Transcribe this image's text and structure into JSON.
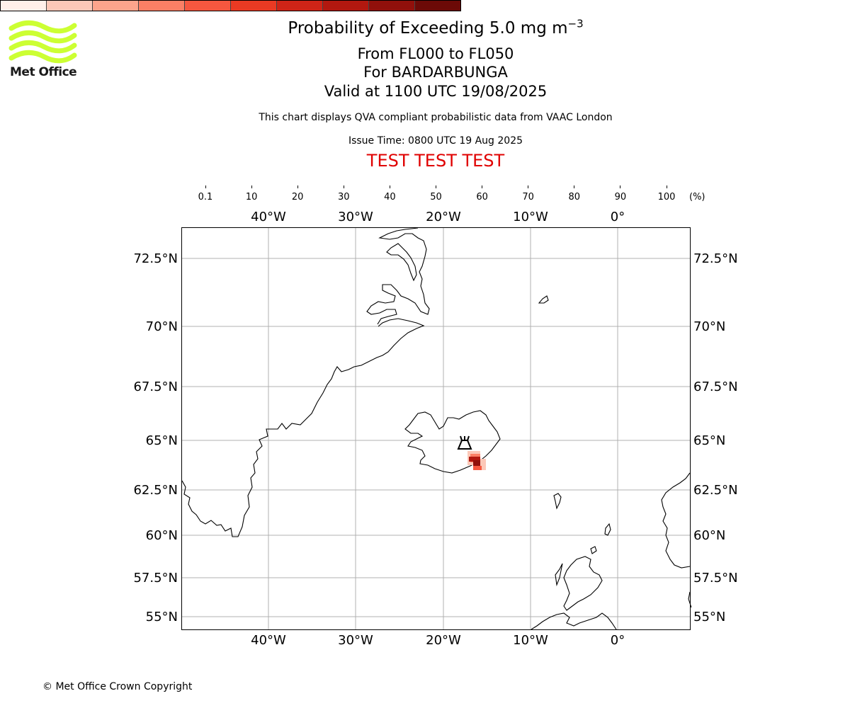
{
  "header": {
    "title_main": "Probability of Exceeding 5.0 mg m",
    "title_exponent": "−3",
    "subtitle_levels": "From FL000 to FL050",
    "subtitle_volcano": "For BARDARBUNGA",
    "subtitle_valid": "Valid at 1100 UTC 19/08/2025",
    "disclaimer": "This chart displays QVA compliant probabilistic data from VAAC London",
    "issue_time": "Issue Time: 0800 UTC 19 Aug 2025",
    "test_banner": "TEST TEST TEST"
  },
  "logo": {
    "text": "Met Office",
    "color": "#ccff33"
  },
  "colorbar": {
    "ticks": [
      "0.1",
      "10",
      "20",
      "30",
      "40",
      "50",
      "60",
      "70",
      "80",
      "90",
      "100"
    ],
    "unit": "(%)",
    "colors": [
      "#fff0ea",
      "#fcc8b8",
      "#fca48c",
      "#fb7f65",
      "#f6573f",
      "#ea3a23",
      "#cf2417",
      "#b2180f",
      "#91100b",
      "#6c0a07"
    ]
  },
  "map": {
    "lon_labels": [
      "40°W",
      "30°W",
      "20°W",
      "10°W",
      "0°"
    ],
    "lat_labels": [
      "72.5°N",
      "70°N",
      "67.5°N",
      "65°N",
      "62.5°N",
      "60°N",
      "57.5°N",
      "55°N"
    ],
    "volcano_icon": "volcano-icon",
    "plume_color": "#b2180f"
  },
  "footer": {
    "copyright": "© Met Office Crown Copyright"
  }
}
